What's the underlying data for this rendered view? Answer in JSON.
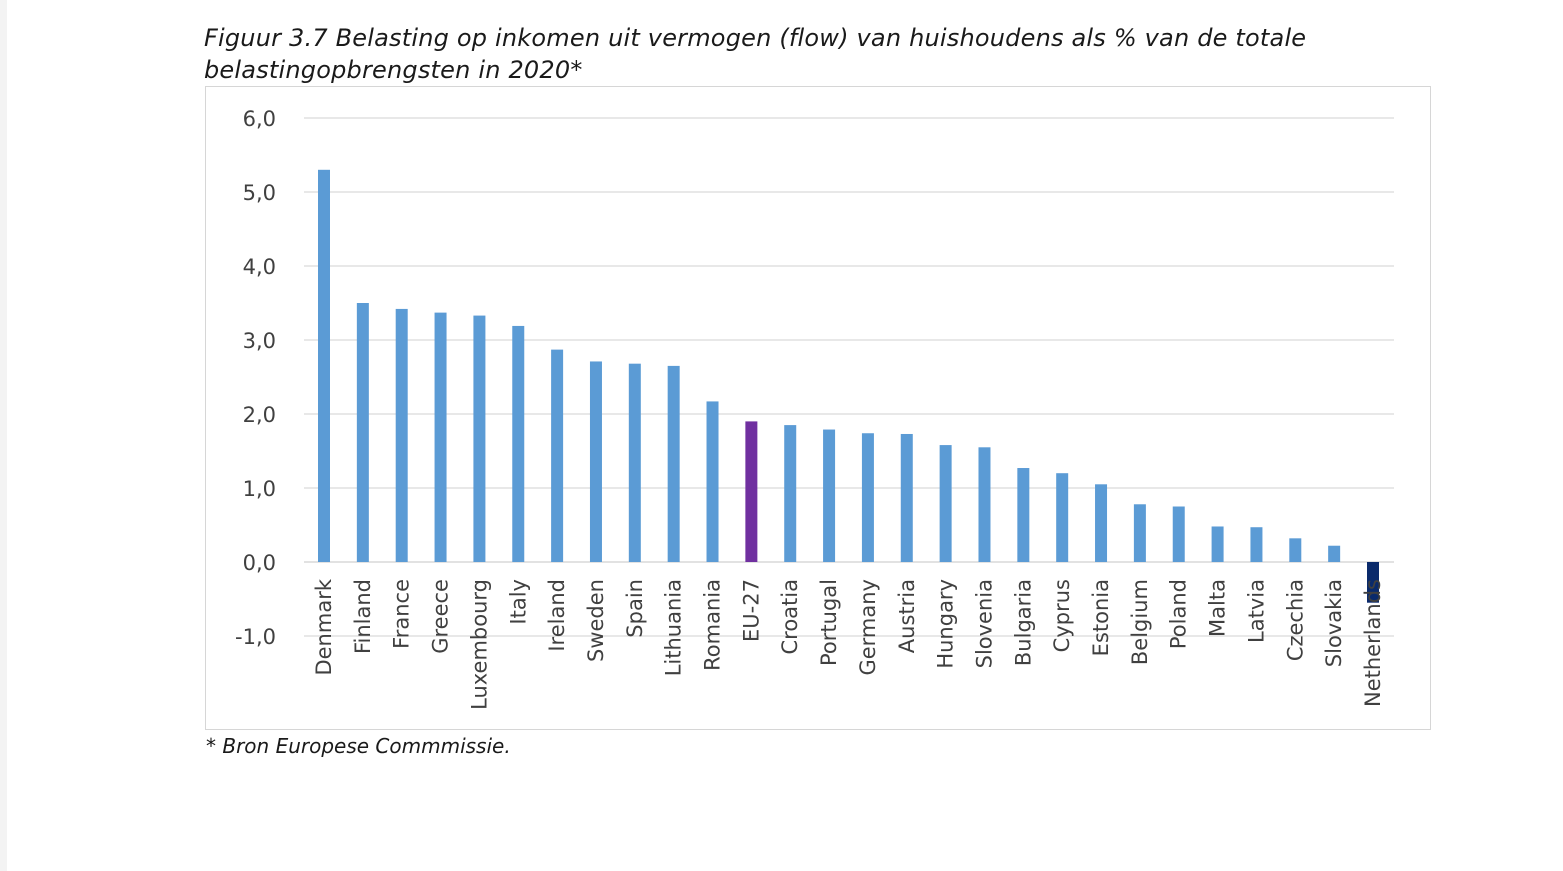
{
  "title": "Figuur 3.7 Belasting op inkomen uit vermogen (flow) van huishoudens als % van de totale belastingopbrengsten in 2020*",
  "source_note": "* Bron Europese Commmissie.",
  "colors": {
    "default_bar": "#5b9bd5",
    "eu_bar": "#7030a0",
    "netherlands_bar": "#0a2a6b",
    "grid": "#d9d9d9"
  },
  "chart_data": {
    "type": "bar",
    "title": "Figuur 3.7 Belasting op inkomen uit vermogen (flow) van huishoudens als % van de totale belastingopbrengsten in 2020*",
    "xlabel": "",
    "ylabel": "",
    "ylim": [
      -1.0,
      6.0
    ],
    "yticks": [
      -1.0,
      0.0,
      1.0,
      2.0,
      3.0,
      4.0,
      5.0,
      6.0
    ],
    "ytick_labels": [
      "-1,0",
      "0,0",
      "1,0",
      "2,0",
      "3,0",
      "4,0",
      "5,0",
      "6,0"
    ],
    "grid": true,
    "legend": "none",
    "categories": [
      "Denmark",
      "Finland",
      "France",
      "Greece",
      "Luxembourg",
      "Italy",
      "Ireland",
      "Sweden",
      "Spain",
      "Lithuania",
      "Romania",
      "EU-27",
      "Croatia",
      "Portugal",
      "Germany",
      "Austria",
      "Hungary",
      "Slovenia",
      "Bulgaria",
      "Cyprus",
      "Estonia",
      "Belgium",
      "Poland",
      "Malta",
      "Latvia",
      "Czechia",
      "Slovakia",
      "Netherlands"
    ],
    "values": [
      5.3,
      3.5,
      3.42,
      3.37,
      3.33,
      3.19,
      2.87,
      2.71,
      2.68,
      2.65,
      2.17,
      1.9,
      1.85,
      1.79,
      1.74,
      1.73,
      1.58,
      1.55,
      1.27,
      1.2,
      1.05,
      0.78,
      0.75,
      0.48,
      0.47,
      0.32,
      0.22,
      -0.55
    ]
  }
}
